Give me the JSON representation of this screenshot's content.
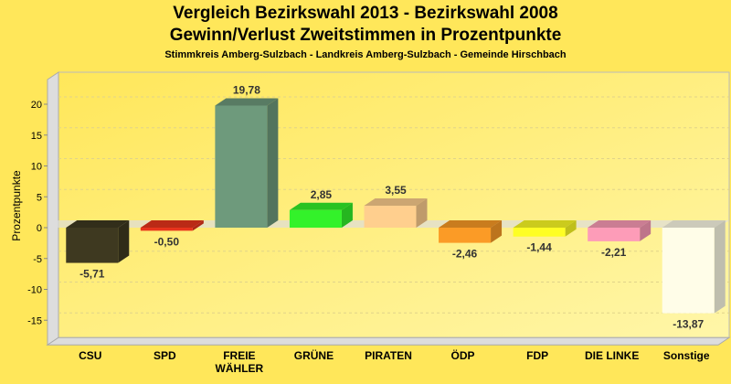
{
  "chart_data": {
    "type": "bar",
    "title": "Vergleich Bezirkswahl 2013 - Bezirkswahl 2008",
    "subtitle": "Gewinn/Verlust Zweitstimmen in Prozentpunkte",
    "caption": "Stimmkreis Amberg-Sulzbach - Landkreis Amberg-Sulzbach - Gemeinde Hirschbach",
    "xlabel": "",
    "ylabel": "Prozentpunkte",
    "ylim": [
      -19,
      24
    ],
    "yticks": [
      -15,
      -10,
      -5,
      0,
      5,
      10,
      15,
      20
    ],
    "grid": true,
    "categories": [
      "CSU",
      "SPD",
      "FREIE\nWÄHLER",
      "GRÜNE",
      "PIRATEN",
      "ÖDP",
      "FDP",
      "DIE LINKE",
      "Sonstige"
    ],
    "values": [
      -5.71,
      -0.5,
      19.78,
      2.85,
      3.55,
      -2.46,
      -1.44,
      -2.21,
      -13.87
    ],
    "value_labels": [
      "-5,71",
      "-0,50",
      "19,78",
      "2,85",
      "3,55",
      "-2,46",
      "-1,44",
      "-2,21",
      "-13,87"
    ],
    "colors": [
      "#3e3920",
      "#e8341c",
      "#6e9a7c",
      "#33f22a",
      "#ffcf8e",
      "#fb9b26",
      "#fefe24",
      "#fd9cb8",
      "#fffde8"
    ]
  }
}
